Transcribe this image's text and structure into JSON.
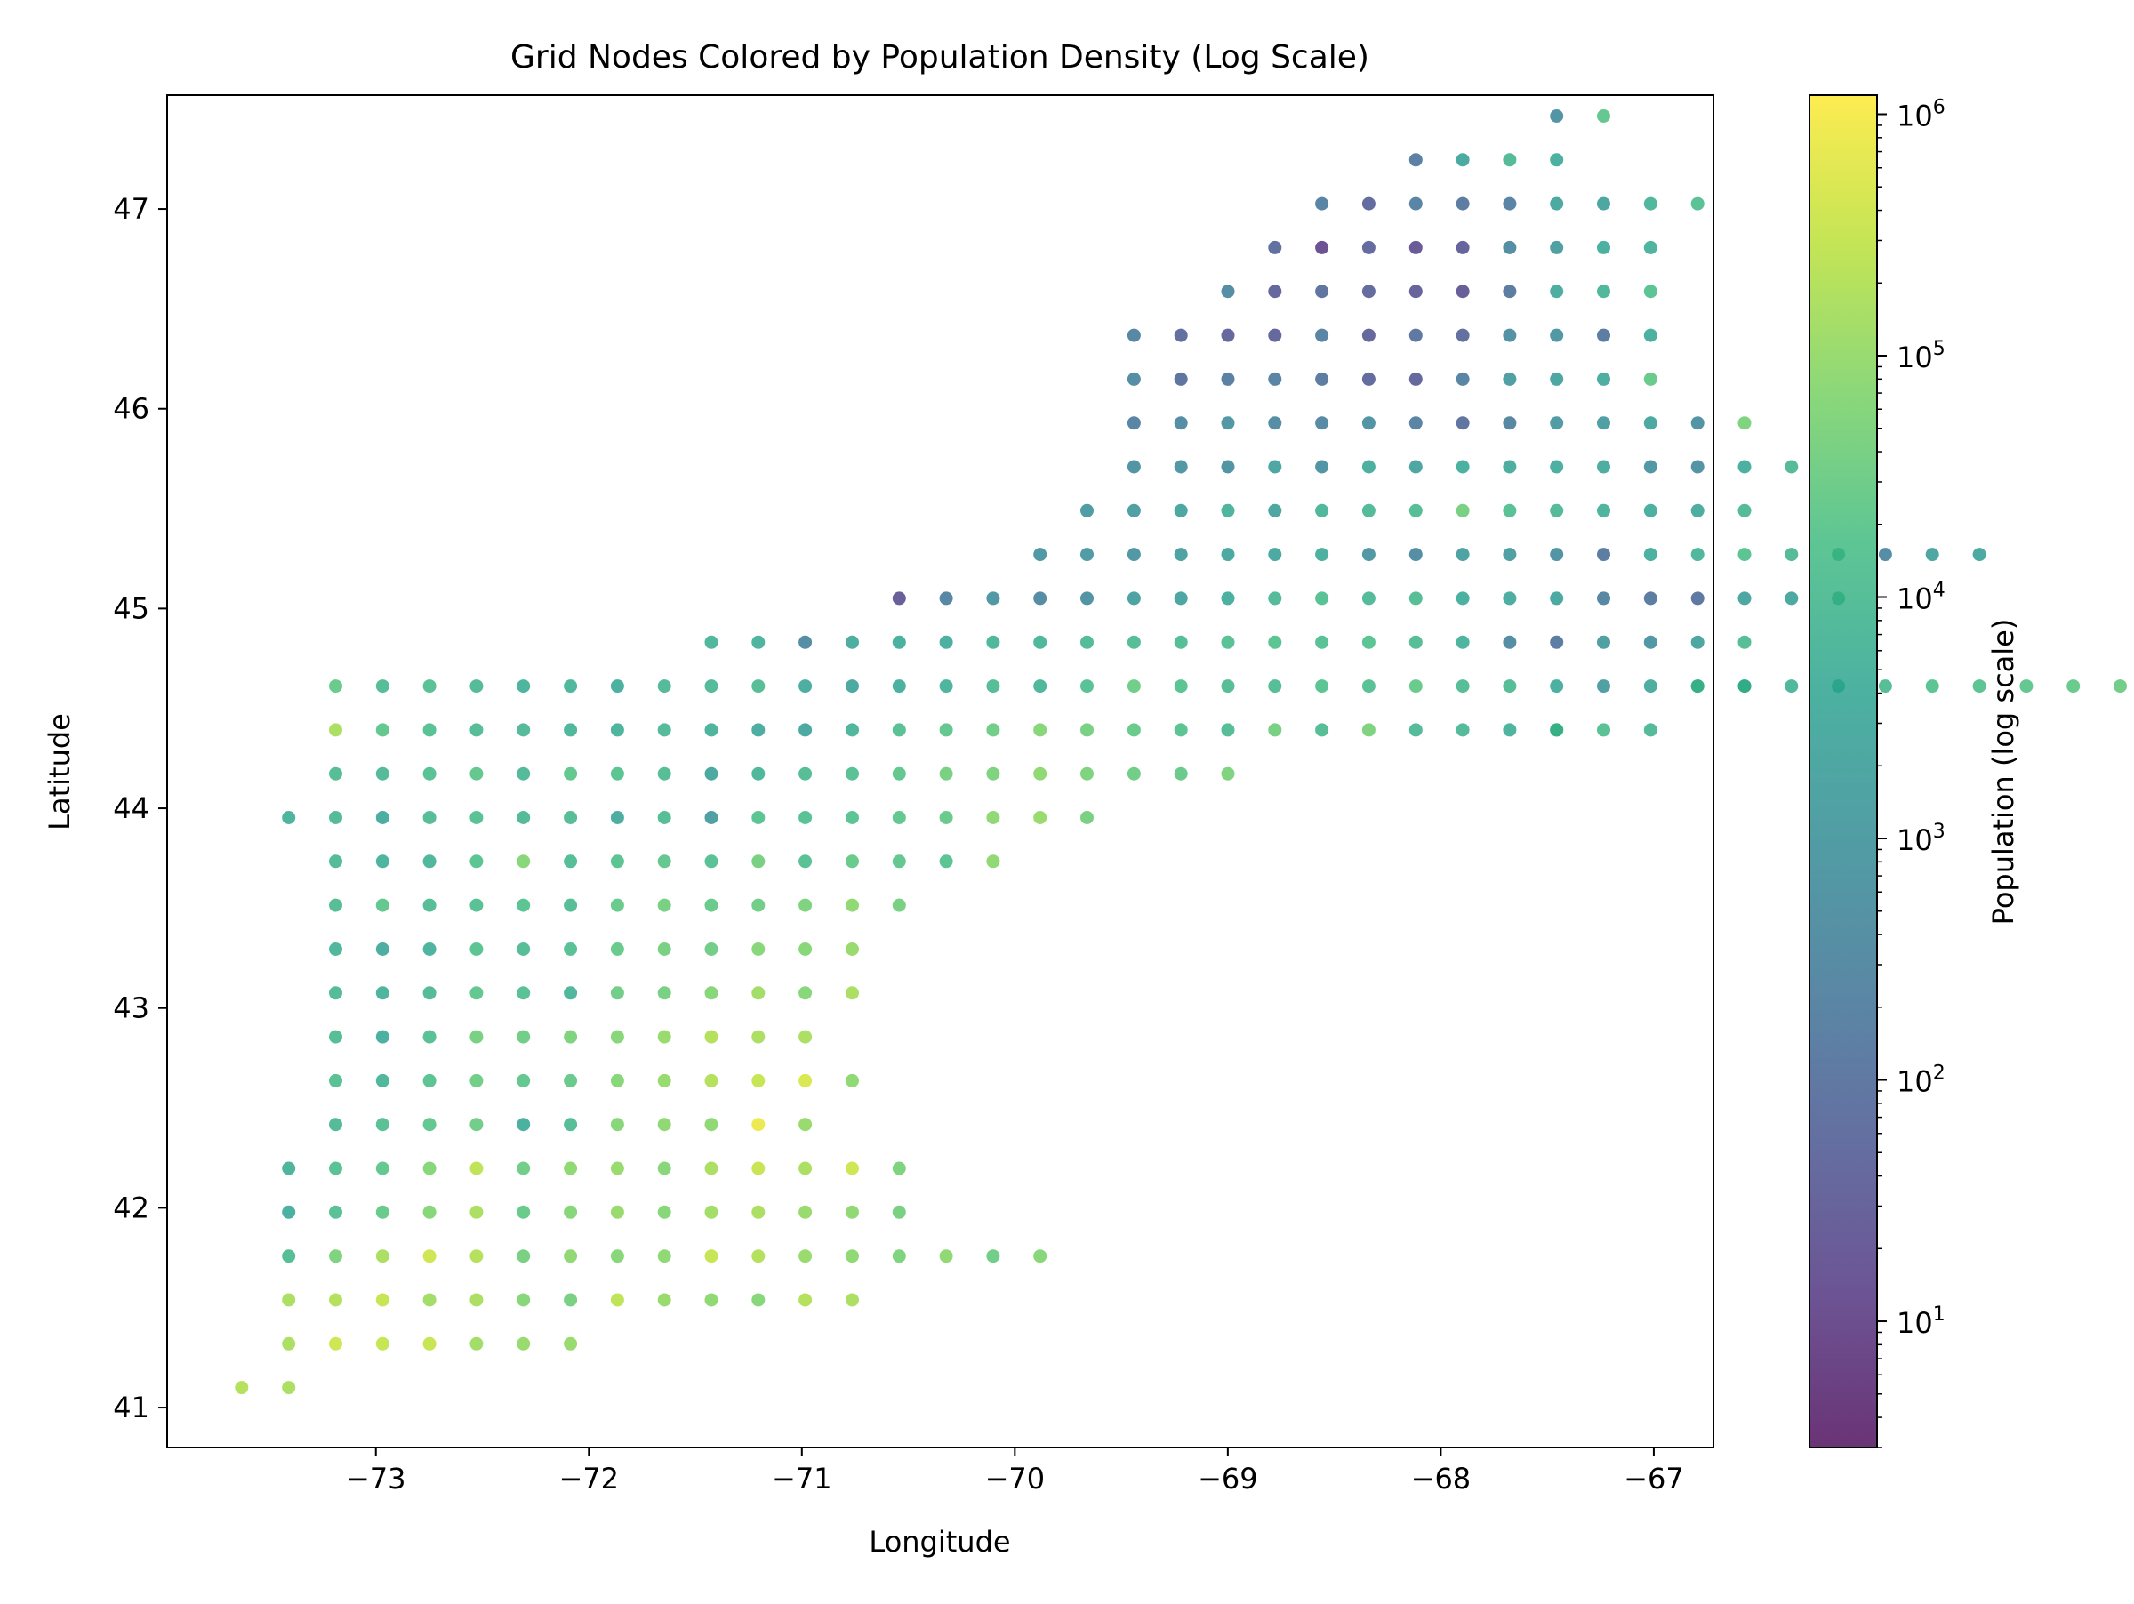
{
  "chart_data": {
    "type": "scatter",
    "title": "Grid Nodes Colored by Population Density (Log Scale)",
    "xlabel": "Longitude",
    "ylabel": "Latitude",
    "xlim": [
      -73.98,
      -66.72
    ],
    "ylim": [
      40.8,
      47.57
    ],
    "xticks": [
      {
        "value": -73,
        "label": "−73"
      },
      {
        "value": -72,
        "label": "−72"
      },
      {
        "value": -71,
        "label": "−71"
      },
      {
        "value": -70,
        "label": "−70"
      },
      {
        "value": -69,
        "label": "−69"
      },
      {
        "value": -68,
        "label": "−68"
      },
      {
        "value": -67,
        "label": "−67"
      }
    ],
    "yticks": [
      {
        "value": 41,
        "label": "41"
      },
      {
        "value": 42,
        "label": "42"
      },
      {
        "value": 43,
        "label": "43"
      },
      {
        "value": 44,
        "label": "44"
      },
      {
        "value": 45,
        "label": "45"
      },
      {
        "value": 46,
        "label": "46"
      },
      {
        "value": 47,
        "label": "47"
      }
    ],
    "grid": false,
    "legend": "none",
    "marker_alpha": 0.8,
    "colorbar": {
      "label": "Population (log scale)",
      "scale": "log",
      "colormap": "viridis",
      "range": [
        3,
        1200000
      ],
      "ticks": [
        {
          "value": 10,
          "base": "10",
          "exp": "1"
        },
        {
          "value": 100,
          "base": "10",
          "exp": "2"
        },
        {
          "value": 1000,
          "base": "10",
          "exp": "3"
        },
        {
          "value": 10000,
          "base": "10",
          "exp": "4"
        },
        {
          "value": 100000,
          "base": "10",
          "exp": "5"
        },
        {
          "value": 1000000,
          "base": "10",
          "exp": "6"
        }
      ]
    },
    "grid_nodes": {
      "lon_start": -73.63,
      "lon_step": 0.2205,
      "lat_start": 41.1,
      "lat_step": 0.2195,
      "value_unit": "log10 population",
      "rows": [
        {
          "row": 0,
          "col_start": 0,
          "values": [
            5.3,
            5.2
          ]
        },
        {
          "row": 1,
          "col_start": 1,
          "values": [
            5.2,
            5.6,
            5.5,
            5.5,
            5.1,
            5.0,
            5.0
          ]
        },
        {
          "row": 2,
          "col_start": 1,
          "values": [
            5.2,
            5.3,
            5.5,
            5.1,
            5.2,
            4.8,
            4.6,
            5.4,
            5.0,
            4.9,
            4.8,
            5.3,
            5.2
          ]
        },
        {
          "row": 3,
          "col_start": 1,
          "values": [
            4.0,
            4.7,
            5.2,
            5.6,
            5.3,
            4.6,
            4.9,
            4.8,
            4.9,
            5.5,
            5.3,
            5.0,
            4.9,
            4.7,
            4.9,
            4.5,
            4.8
          ]
        },
        {
          "row": 4,
          "col_start": 1,
          "values": [
            3.6,
            4.1,
            4.4,
            4.8,
            5.2,
            4.4,
            4.8,
            5.0,
            4.8,
            5.1,
            5.2,
            5.0,
            4.9,
            4.6
          ]
        },
        {
          "row": 5,
          "col_start": 1,
          "values": [
            3.7,
            4.1,
            4.3,
            4.8,
            5.4,
            4.5,
            4.9,
            5.0,
            4.8,
            5.2,
            5.5,
            5.2,
            5.6,
            4.7
          ]
        },
        {
          "row": 6,
          "col_start": 2,
          "values": [
            3.9,
            4.1,
            4.3,
            4.5,
            3.6,
            4.0,
            4.8,
            4.9,
            4.9,
            5.9,
            5.0
          ]
        },
        {
          "row": 7,
          "col_start": 2,
          "values": [
            4.1,
            3.8,
            4.2,
            4.5,
            4.3,
            4.4,
            4.8,
            5.0,
            5.3,
            5.5,
            5.7,
            4.9
          ]
        },
        {
          "row": 8,
          "col_start": 2,
          "values": [
            4.0,
            3.6,
            4.1,
            4.6,
            4.5,
            4.7,
            4.8,
            5.0,
            5.3,
            5.2,
            5.2
          ]
        },
        {
          "row": 9,
          "col_start": 2,
          "values": [
            3.9,
            3.7,
            3.9,
            4.3,
            4.1,
            3.8,
            4.5,
            4.6,
            4.8,
            5.1,
            4.8,
            5.2
          ]
        },
        {
          "row": 10,
          "col_start": 2,
          "values": [
            3.8,
            3.5,
            3.7,
            4.2,
            4.0,
            4.1,
            4.4,
            4.6,
            4.5,
            4.8,
            4.8,
            5.0
          ]
        },
        {
          "row": 11,
          "col_start": 2,
          "values": [
            4.0,
            4.3,
            4.0,
            4.1,
            4.2,
            4.0,
            4.4,
            4.6,
            4.4,
            4.5,
            4.7,
            4.9,
            4.6
          ]
        },
        {
          "row": 12,
          "col_start": 2,
          "values": [
            3.9,
            3.7,
            3.8,
            4.2,
            4.8,
            4.0,
            4.2,
            4.3,
            4.1,
            4.6,
            4.1,
            4.4,
            4.3,
            4.2,
            4.9
          ]
        },
        {
          "row": 13,
          "col_start": 1,
          "values": [
            3.7,
            3.9,
            3.5,
            4.0,
            4.1,
            3.9,
            4.0,
            3.5,
            4.0,
            3.1,
            4.2,
            4.1,
            4.2,
            4.3,
            4.4,
            4.9,
            5.0,
            4.6
          ]
        },
        {
          "row": 14,
          "col_start": 2,
          "values": [
            4.0,
            3.9,
            4.1,
            4.3,
            3.9,
            4.3,
            4.2,
            4.0,
            3.4,
            3.8,
            4.0,
            4.1,
            4.3,
            4.6,
            4.7,
            4.9,
            4.7,
            4.5,
            4.4,
            4.7
          ]
        },
        {
          "row": 15,
          "col_start": 2,
          "values": [
            5.2,
            4.3,
            4.1,
            4.0,
            3.9,
            3.8,
            3.7,
            3.9,
            3.7,
            3.5,
            3.4,
            3.8,
            4.1,
            4.3,
            4.5,
            4.8,
            4.6,
            4.4,
            4.2,
            4.0,
            4.6,
            4.0,
            4.7,
            3.9,
            3.9,
            3.7,
            3.9,
            4.1
          ],
          "extra": [
            {
              "col": 28,
              "value": 4.0
            },
            {
              "col": 30,
              "value": 3.9
            }
          ]
        },
        {
          "row": 16,
          "col_start": 2,
          "values": [
            4.4,
            4.0,
            4.1,
            3.9,
            3.7,
            3.8,
            3.6,
            3.9,
            3.9,
            4.0,
            3.5,
            3.4,
            3.6,
            3.7,
            4.0,
            3.8,
            4.1,
            4.5,
            4.2,
            4.0,
            4.0,
            4.2,
            4.1,
            4.4,
            4.0,
            4.0,
            3.6,
            3.1,
            3.5,
            3.9,
            3.7
          ],
          "extra": [
            {
              "col": 31,
              "value": 4.0
            },
            {
              "col": 32,
              "value": 3.9
            },
            {
              "col": 33,
              "value": 3.8
            },
            {
              "col": 34,
              "value": 4.0
            },
            {
              "col": 35,
              "value": 4.0
            },
            {
              "col": 36,
              "value": 4.2
            },
            {
              "col": 37,
              "value": 4.2
            },
            {
              "col": 38,
              "value": 4.3
            },
            {
              "col": 39,
              "value": 4.4
            },
            {
              "col": 40,
              "value": 4.5
            },
            {
              "col": 41,
              "value": 4.4
            }
          ]
        },
        {
          "row": 17,
          "col_start": 10,
          "values": [
            3.8,
            3.7,
            2.6,
            3.5,
            3.6,
            3.6,
            3.8,
            3.8,
            3.9,
            4.0,
            4.0,
            4.1,
            4.2,
            4.1,
            4.2,
            4.0,
            3.7,
            2.6,
            2.1,
            3.1,
            2.9,
            3.3,
            4.0
          ]
        },
        {
          "row": 18,
          "col_start": 14,
          "values": [
            1.4,
            2.4,
            2.9,
            2.6,
            2.8,
            3.2,
            3.3,
            3.6,
            3.9,
            4.1,
            3.9,
            4.0,
            3.6,
            3.5,
            3.4,
            2.4,
            2.1,
            2.0,
            3.3,
            3.4,
            3.8
          ]
        },
        {
          "row": 19,
          "col_start": 17,
          "values": [
            2.9,
            3.0,
            2.9,
            3.2,
            3.4,
            3.4,
            3.6,
            2.9,
            2.6,
            3.2,
            3.1,
            2.8,
            2.1,
            3.6,
            3.8,
            4.2,
            3.9,
            3.5,
            2.6,
            3.3,
            3.4
          ]
        },
        {
          "row": 20,
          "col_start": 18,
          "values": [
            3.0,
            3.1,
            3.3,
            3.7,
            3.3,
            3.8,
            3.9,
            4.0,
            4.6,
            4.1,
            3.9,
            3.7,
            3.6,
            3.5,
            3.9
          ]
        },
        {
          "row": 21,
          "col_start": 19,
          "values": [
            2.8,
            2.9,
            2.8,
            3.3,
            2.8,
            3.6,
            3.3,
            3.6,
            3.5,
            3.6,
            3.5,
            2.9,
            2.8,
            3.6,
            3.9
          ]
        },
        {
          "row": 22,
          "col_start": 19,
          "values": [
            2.3,
            2.6,
            2.9,
            2.6,
            2.5,
            2.8,
            2.3,
            1.9,
            2.4,
            3.0,
            3.1,
            3.4,
            2.8,
            4.7
          ]
        },
        {
          "row": 23,
          "col_start": 19,
          "values": [
            2.6,
            1.9,
            2.2,
            2.3,
            2.1,
            1.7,
            1.6,
            2.3,
            3.1,
            3.3,
            3.5,
            4.4
          ]
        },
        {
          "row": 24,
          "col_start": 19,
          "values": [
            2.4,
            1.8,
            1.6,
            1.6,
            2.3,
            1.6,
            2.0,
            1.8,
            2.7,
            2.9,
            2.1,
            3.6
          ]
        },
        {
          "row": 25,
          "col_start": 21,
          "values": [
            2.6,
            1.6,
            1.9,
            1.7,
            1.5,
            1.4,
            2.1,
            3.5,
            3.8,
            4.2
          ]
        },
        {
          "row": 26,
          "col_start": 22,
          "values": [
            1.8,
            1.1,
            1.7,
            1.3,
            1.5,
            2.6,
            3.1,
            3.6,
            3.7
          ]
        },
        {
          "row": 27,
          "col_start": 23,
          "values": [
            2.3,
            1.7,
            2.3,
            2.1,
            2.3,
            3.4,
            3.3,
            3.8,
            4.1
          ]
        },
        {
          "row": 28,
          "col_start": 25,
          "values": [
            2.2,
            3.4,
            3.9,
            3.6
          ]
        },
        {
          "row": 29,
          "col_start": 28,
          "values": [
            2.8,
            4.3
          ]
        }
      ]
    }
  }
}
